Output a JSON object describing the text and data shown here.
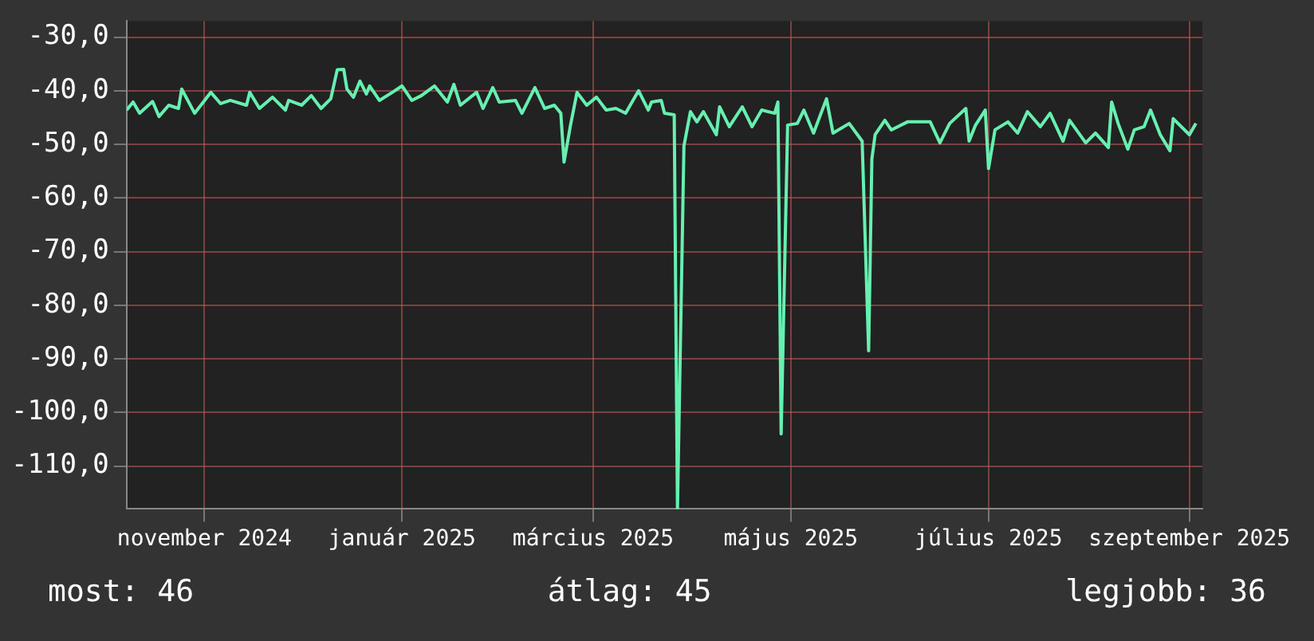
{
  "chart_data": {
    "type": "line",
    "x": [
      "2024-10-08",
      "2024-10-10",
      "2024-10-12",
      "2024-10-16",
      "2024-10-18",
      "2024-10-21",
      "2024-10-24",
      "2024-10-25",
      "2024-10-29",
      "2024-11-03",
      "2024-11-06",
      "2024-11-09",
      "2024-11-14",
      "2024-11-15",
      "2024-11-18",
      "2024-11-22",
      "2024-11-26",
      "2024-11-27",
      "2024-12-01",
      "2024-12-04",
      "2024-12-07",
      "2024-12-10",
      "2024-12-12",
      "2024-12-14",
      "2024-12-15",
      "2024-12-17",
      "2024-12-19",
      "2024-12-21",
      "2024-12-22",
      "2024-12-25",
      "2024-12-29",
      "2025-01-01",
      "2025-01-04",
      "2025-01-07",
      "2025-01-11",
      "2025-01-15",
      "2025-01-17",
      "2025-01-19",
      "2025-01-24",
      "2025-01-26",
      "2025-01-29",
      "2025-01-31",
      "2025-02-05",
      "2025-02-07",
      "2025-02-11",
      "2025-02-14",
      "2025-02-17",
      "2025-02-19",
      "2025-02-20",
      "2025-02-22",
      "2025-02-24",
      "2025-02-27",
      "2025-03-02",
      "2025-03-05",
      "2025-03-08",
      "2025-03-11",
      "2025-03-15",
      "2025-03-18",
      "2025-03-19",
      "2025-03-22",
      "2025-03-23",
      "2025-03-26",
      "2025-03-27",
      "2025-03-29",
      "2025-03-31",
      "2025-04-02",
      "2025-04-04",
      "2025-04-08",
      "2025-04-09",
      "2025-04-12",
      "2025-04-16",
      "2025-04-19",
      "2025-04-22",
      "2025-04-26",
      "2025-04-27",
      "2025-04-28",
      "2025-04-30",
      "2025-05-03",
      "2025-05-05",
      "2025-05-08",
      "2025-05-12",
      "2025-05-14",
      "2025-05-19",
      "2025-05-23",
      "2025-05-25",
      "2025-05-26",
      "2025-05-27",
      "2025-05-30",
      "2025-06-01",
      "2025-06-06",
      "2025-06-08",
      "2025-06-13",
      "2025-06-16",
      "2025-06-19",
      "2025-06-24",
      "2025-06-25",
      "2025-06-27",
      "2025-06-30",
      "2025-07-01",
      "2025-07-03",
      "2025-07-07",
      "2025-07-10",
      "2025-07-13",
      "2025-07-17",
      "2025-07-20",
      "2025-07-24",
      "2025-07-26",
      "2025-07-31",
      "2025-08-03",
      "2025-08-07",
      "2025-08-08",
      "2025-08-10",
      "2025-08-13",
      "2025-08-15",
      "2025-08-18",
      "2025-08-20",
      "2025-08-23",
      "2025-08-26",
      "2025-08-27",
      "2025-09-01",
      "2025-09-03"
    ],
    "series": [
      {
        "color": "#66f0b0",
        "values": [
          -43.6,
          -42.1,
          -44.2,
          -42,
          -44.8,
          -42.7,
          -43.3,
          -39.7,
          -44.2,
          -40.3,
          -42.4,
          -41.8,
          -42.7,
          -40.3,
          -43.3,
          -41.2,
          -43.6,
          -41.8,
          -42.7,
          -40.9,
          -43.3,
          -41.5,
          -36.1,
          -36,
          -39.7,
          -41.2,
          -38.2,
          -40.6,
          -39.1,
          -41.8,
          -40.3,
          -39.1,
          -41.8,
          -40.9,
          -39.1,
          -42.1,
          -38.8,
          -42.7,
          -40.3,
          -43.3,
          -39.4,
          -42.1,
          -41.8,
          -44.2,
          -39.4,
          -43.3,
          -42.7,
          -44.2,
          -53.3,
          -46.4,
          -40.3,
          -42.7,
          -41.2,
          -43.6,
          -43.3,
          -44.2,
          -40,
          -43.6,
          -42.1,
          -41.8,
          -44.2,
          -44.5,
          -118,
          -50.3,
          -43.9,
          -45.8,
          -43.9,
          -48.2,
          -43,
          -46.7,
          -43,
          -46.7,
          -43.6,
          -44.2,
          -42.1,
          -104,
          -46.4,
          -46.1,
          -43.6,
          -47.9,
          -41.5,
          -47.9,
          -46.1,
          -49.4,
          -88.5,
          -52.7,
          -48.2,
          -45.5,
          -47.3,
          -45.8,
          -45.8,
          -45.8,
          -49.7,
          -46.1,
          -43.3,
          -49.4,
          -46.4,
          -43.6,
          -54.5,
          -47.3,
          -45.8,
          -47.9,
          -43.9,
          -46.7,
          -44.2,
          -49.4,
          -45.5,
          -49.7,
          -47.9,
          -50.6,
          -42.1,
          -46.1,
          -50.9,
          -47.3,
          -46.7,
          -43.6,
          -48.2,
          -51.2,
          -45.2,
          -48.2,
          -46.1
        ]
      }
    ],
    "xlim": [
      "2024-10-08",
      "2025-09-05"
    ],
    "xticks": [
      {
        "value": "2024-11-01",
        "label": "november 2024"
      },
      {
        "value": "2025-01-01",
        "label": "január 2025"
      },
      {
        "value": "2025-03-01",
        "label": "március 2025"
      },
      {
        "value": "2025-05-01",
        "label": "május 2025"
      },
      {
        "value": "2025-07-01",
        "label": "július 2025"
      },
      {
        "value": "2025-09-01",
        "label": "szeptember 2025"
      }
    ],
    "ylim": [
      -118,
      -27
    ],
    "yticks": [
      {
        "value": -30,
        "label": "-30,0"
      },
      {
        "value": -40,
        "label": "-40,0"
      },
      {
        "value": -50,
        "label": "-50,0"
      },
      {
        "value": -60,
        "label": "-60,0"
      },
      {
        "value": -70,
        "label": "-70,0"
      },
      {
        "value": -80,
        "label": "-80,0"
      },
      {
        "value": -90,
        "label": "-90,0"
      },
      {
        "value": -100,
        "label": "-100,0"
      },
      {
        "value": -110,
        "label": "-110,0"
      }
    ],
    "grid": true,
    "legend": false,
    "marker": "none",
    "line_style": "solid",
    "annotations": [
      "most: 46",
      "átlag: 45",
      "legjobb: 36"
    ]
  }
}
